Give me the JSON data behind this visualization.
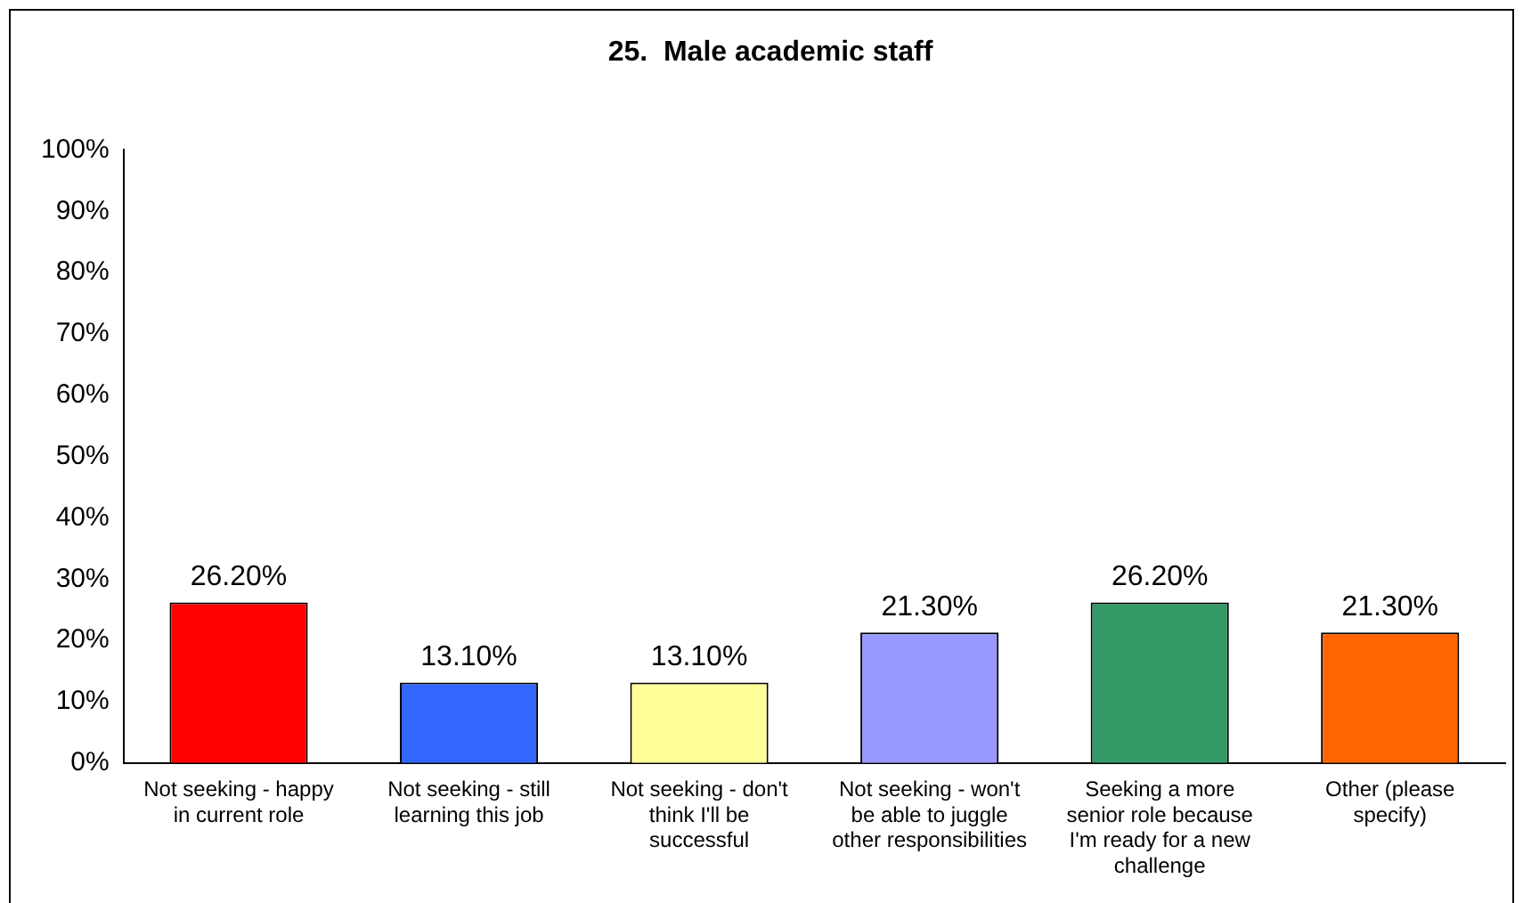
{
  "chart_data": {
    "type": "bar",
    "title": "25.  Male academic staff",
    "categories": [
      "Not seeking - happy in current role",
      "Not seeking - still learning this job",
      "Not seeking - don't think I'll be successful",
      "Not seeking - won't be able to juggle other responsibilities",
      "Seeking a more senior role because I'm ready for a new challenge",
      "Other (please specify)"
    ],
    "values": [
      26.2,
      13.1,
      13.1,
      21.3,
      26.2,
      21.3
    ],
    "colors": [
      "#ff0000",
      "#3366ff",
      "#ffff99",
      "#9999ff",
      "#339966",
      "#ff6600"
    ],
    "value_labels": [
      "26.20%",
      "13.10%",
      "13.10%",
      "21.30%",
      "26.20%",
      "21.30%"
    ],
    "ylim": [
      0,
      100
    ],
    "yticks": [
      {
        "value": 0,
        "label": "0%"
      },
      {
        "value": 10,
        "label": "10%"
      },
      {
        "value": 20,
        "label": "20%"
      },
      {
        "value": 30,
        "label": "30%"
      },
      {
        "value": 40,
        "label": "40%"
      },
      {
        "value": 50,
        "label": "50%"
      },
      {
        "value": 60,
        "label": "60%"
      },
      {
        "value": 70,
        "label": "70%"
      },
      {
        "value": 80,
        "label": "80%"
      },
      {
        "value": 90,
        "label": "90%"
      },
      {
        "value": 100,
        "label": "100%"
      }
    ],
    "grid": false,
    "legend": false
  }
}
